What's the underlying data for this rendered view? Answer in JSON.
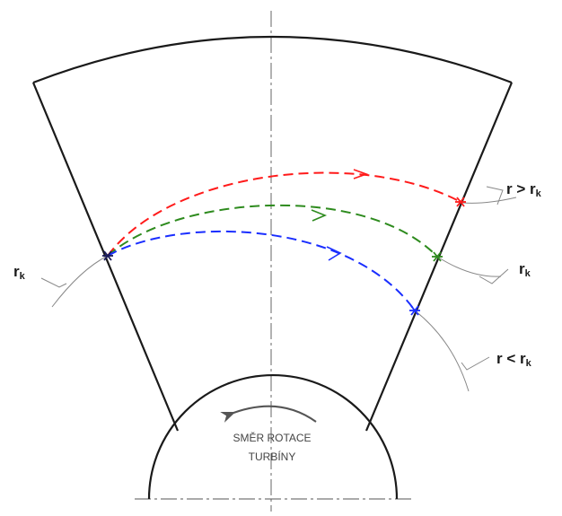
{
  "labels": {
    "rk_left": {
      "main": "r",
      "sub": "k"
    },
    "r_greater": {
      "prefix": "r > r",
      "sub": "k"
    },
    "rk_right": {
      "main": "r",
      "sub": "k"
    },
    "r_less": {
      "prefix": "r < r",
      "sub": "k"
    }
  },
  "rotation": {
    "line1": "SMĚR ROTACE",
    "line2": "TURBÍNY"
  },
  "colors": {
    "outline": "#1a1a1a",
    "guide": "#888888",
    "red_path": "#ff1a1a",
    "green_path": "#2e8b1e",
    "blue_path": "#1a2eff",
    "rotation_arrow": "#555555"
  }
}
